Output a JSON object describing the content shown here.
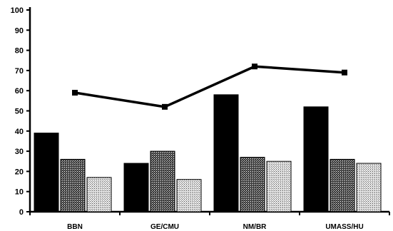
{
  "chart_data": {
    "type": "bar",
    "categories": [
      "BBN",
      "GE/CMU",
      "NM/BR",
      "UMASS/HU"
    ],
    "ylim": [
      0,
      100
    ],
    "yticks": [
      0,
      10,
      20,
      30,
      40,
      50,
      60,
      70,
      80,
      90,
      100
    ],
    "grid": false,
    "series": [
      {
        "kind": "bar",
        "pattern": "solid-black",
        "values": [
          39,
          24,
          58,
          52
        ]
      },
      {
        "kind": "bar",
        "pattern": "dark-stipple",
        "values": [
          26,
          30,
          27,
          26
        ]
      },
      {
        "kind": "bar",
        "pattern": "light-stipple",
        "values": [
          17,
          16,
          25,
          24
        ]
      },
      {
        "kind": "line",
        "marker": "square",
        "values": [
          59,
          52,
          72,
          69
        ]
      }
    ],
    "colors": {
      "bar_solid": "#000000",
      "line": "#000000",
      "background": "#ffffff"
    }
  }
}
